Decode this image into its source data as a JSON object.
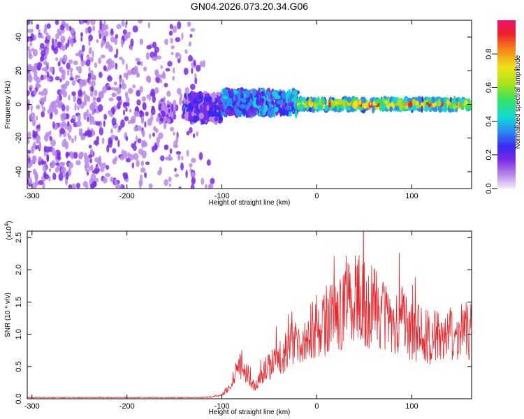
{
  "title": "GN04.2026.073.20.34.G06",
  "colors": {
    "spectral_low": "#c9b8f2",
    "spectral_mid": "#7a2be6",
    "snr_line": "#e8262b",
    "colormap": [
      "#f3ecfb",
      "#b98ae8",
      "#7a2be6",
      "#3a2af0",
      "#2b8cf0",
      "#10d8d8",
      "#2de36a",
      "#a6e31a",
      "#f0e21a",
      "#f58a1a",
      "#ef1f2a",
      "#f0106e"
    ]
  },
  "chart_data": [
    {
      "type": "heatmap",
      "xlabel": "Height of straight line (km)",
      "ylabel": "Frequency (Hz)",
      "xlim": [
        -305,
        163
      ],
      "ylim": [
        -50,
        50
      ],
      "x_ticks": [
        "-300",
        "-200",
        "-100",
        "0",
        "100"
      ],
      "y_ticks": [
        "-40",
        "-20",
        "0",
        "20",
        "40"
      ],
      "colorbar": {
        "label": "Normalized spectral amplitude",
        "range": [
          0,
          1
        ],
        "ticks": [
          "0.0",
          "0.2",
          "0.4",
          "0.6",
          "0.8"
        ]
      },
      "description_regions": [
        {
          "x": [
            -305,
            -110
          ],
          "y": [
            -50,
            50
          ],
          "amplitude": 0.05
        },
        {
          "x": [
            -165,
            -150
          ],
          "y": [
            -10,
            0
          ],
          "amplitude": 0.12
        },
        {
          "x": [
            -140,
            -100
          ],
          "y": [
            -10,
            6
          ],
          "amplitude": 0.2
        },
        {
          "x": [
            -100,
            -20
          ],
          "y": [
            -6,
            8
          ],
          "amplitude": 0.3
        },
        {
          "x": [
            -20,
            163
          ],
          "y": [
            -3,
            3
          ],
          "amplitude": 0.6
        }
      ]
    },
    {
      "type": "line",
      "xlabel": "Height of straight line (km)",
      "ylabel": "SNR (10 * v/v)",
      "scale_note": "(x10",
      "scale_exp": "4",
      "xlim": [
        -305,
        163
      ],
      "ylim": [
        0,
        2.6
      ],
      "x_ticks": [
        "-300",
        "-200",
        "-100",
        "0",
        "100"
      ],
      "y_ticks": [
        "0.0",
        "0.5",
        "1.0",
        "1.5",
        "2.0",
        "2.5"
      ],
      "series": [
        {
          "x": [
            -305,
            -280,
            -250,
            -200,
            -150,
            -120,
            -110,
            -100,
            -95,
            -90,
            -85,
            -80,
            -75,
            -70,
            -65,
            -60,
            -55,
            -50,
            -45,
            -40,
            -35,
            -30,
            -25,
            -20,
            -15,
            -10,
            -5,
            0,
            5,
            10,
            15,
            20,
            25,
            30,
            35,
            40,
            45,
            50,
            55,
            60,
            65,
            70,
            75,
            80,
            85,
            90,
            95,
            100,
            105,
            110,
            115,
            120,
            125,
            130,
            135,
            140,
            145,
            150,
            155,
            160,
            163
          ],
          "values": [
            0.02,
            0.02,
            0.02,
            0.02,
            0.02,
            0.02,
            0.03,
            0.06,
            0.12,
            0.2,
            0.45,
            0.55,
            0.4,
            0.25,
            0.18,
            0.3,
            0.45,
            0.5,
            0.55,
            0.6,
            0.7,
            0.8,
            0.9,
            0.75,
            0.95,
            1.0,
            1.1,
            1.05,
            1.1,
            1.2,
            1.25,
            1.3,
            1.35,
            1.45,
            1.5,
            1.6,
            1.55,
            1.45,
            1.4,
            1.5,
            1.35,
            1.3,
            1.25,
            1.2,
            1.1,
            1.2,
            1.1,
            1.05,
            1.0,
            1.1,
            1.0,
            0.95,
            1.0,
            0.9,
            0.95,
            1.0,
            0.9,
            1.0,
            1.1,
            1.0,
            1.05
          ]
        }
      ]
    }
  ]
}
